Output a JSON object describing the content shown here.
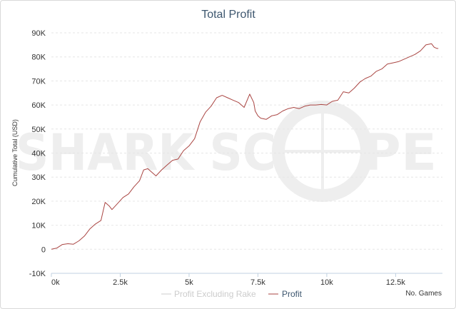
{
  "chart_data": {
    "type": "line",
    "title": "Total Profit",
    "ylabel": "Cumulative Total (USD)",
    "xlabel": "No. Games",
    "xlim": [
      0,
      14200
    ],
    "ylim": [
      -10000,
      90000
    ],
    "x_ticks": [
      0,
      2500,
      5000,
      7500,
      10000,
      12500
    ],
    "x_tick_labels": [
      "0k",
      "2.5k",
      "5k",
      "7.5k",
      "10k",
      "12.5k"
    ],
    "y_ticks": [
      -10000,
      0,
      10000,
      20000,
      30000,
      40000,
      50000,
      60000,
      70000,
      80000,
      90000
    ],
    "y_tick_labels": [
      "-10K",
      "0",
      "10K",
      "20K",
      "30K",
      "40K",
      "50K",
      "60K",
      "70K",
      "80K",
      "90K"
    ],
    "grid": true,
    "legend_position": "bottom-center",
    "watermark": "SHARKSCOPE",
    "colors": {
      "profit": "#aa4643",
      "excluding_rake": "#cccccc",
      "grid": "#e6e6e6",
      "title": "#3e576f"
    },
    "series": [
      {
        "name": "Profit Excluding Rake",
        "visible": false,
        "x": [],
        "values": []
      },
      {
        "name": "Profit",
        "visible": true,
        "x": [
          0,
          200,
          400,
          600,
          800,
          1000,
          1200,
          1400,
          1600,
          1800,
          1950,
          2000,
          2100,
          2200,
          2400,
          2600,
          2800,
          3000,
          3200,
          3350,
          3500,
          3600,
          3800,
          4000,
          4200,
          4400,
          4600,
          4800,
          5000,
          5200,
          5400,
          5600,
          5800,
          6000,
          6200,
          6400,
          6600,
          6800,
          7000,
          7200,
          7350,
          7400,
          7450,
          7500,
          7600,
          7800,
          8000,
          8200,
          8400,
          8600,
          8800,
          9000,
          9200,
          9400,
          9600,
          9800,
          10000,
          10200,
          10400,
          10600,
          10800,
          11000,
          11200,
          11400,
          11600,
          11800,
          12000,
          12200,
          12400,
          12600,
          12800,
          13000,
          13200,
          13400,
          13600,
          13800,
          13900,
          14000,
          14050
        ],
        "values": [
          0,
          500,
          2000,
          2300,
          2100,
          3500,
          5500,
          8500,
          10500,
          12000,
          19500,
          19000,
          18000,
          16500,
          19000,
          21500,
          23000,
          26000,
          28500,
          33000,
          33500,
          32500,
          30500,
          33000,
          35000,
          37000,
          37500,
          41000,
          43000,
          46000,
          53000,
          57000,
          59500,
          63000,
          64000,
          63000,
          62000,
          61000,
          59000,
          64500,
          61000,
          57500,
          56500,
          55500,
          54500,
          54000,
          55500,
          56000,
          57500,
          58500,
          59000,
          58500,
          59500,
          60000,
          60000,
          60200,
          60000,
          61500,
          62000,
          65500,
          65000,
          67000,
          69500,
          71000,
          72000,
          74000,
          75000,
          77000,
          77500,
          78000,
          79000,
          80000,
          81000,
          82500,
          85000,
          85500,
          84000,
          83500,
          83500
        ]
      }
    ]
  }
}
